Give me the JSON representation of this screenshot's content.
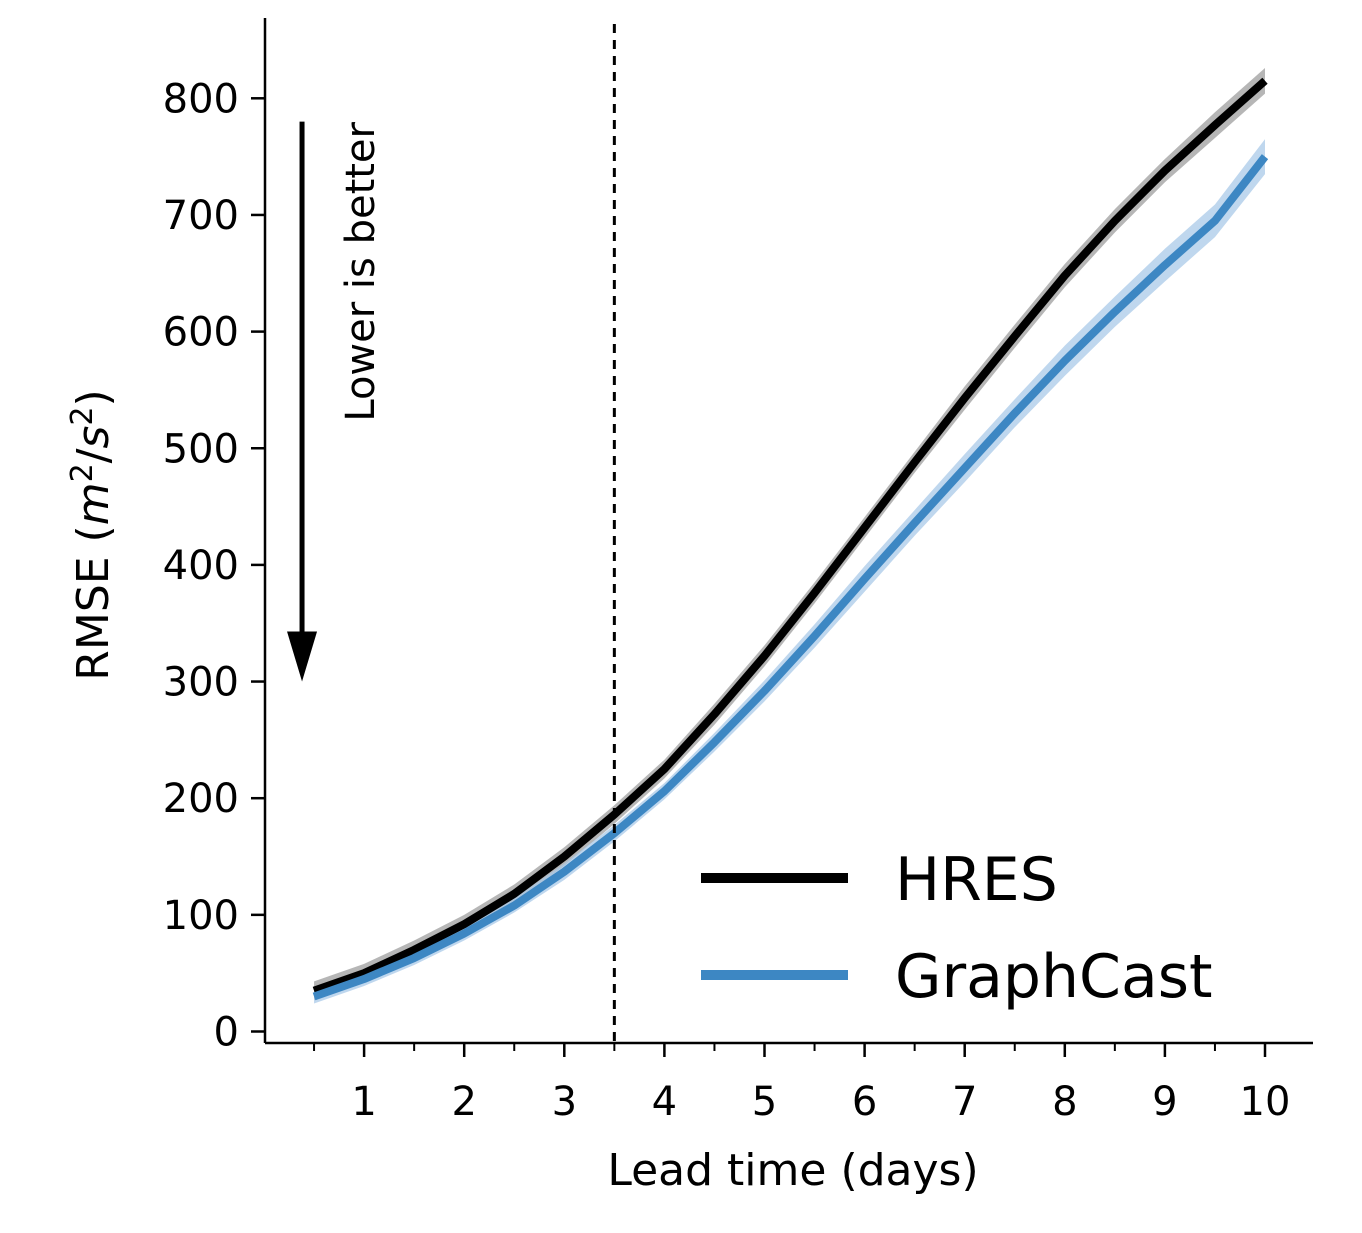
{
  "chart_data": {
    "type": "line",
    "xlabel": "Lead time (days)",
    "ylabel": "RMSE ($m^2/s^2$)",
    "ylabel_parts": {
      "prefix": "RMSE (",
      "m": "m",
      "sup1": "2",
      "slash": "/",
      "s": "s",
      "sup2": "2",
      "suffix": ")"
    },
    "xlim": [
      0,
      10.5
    ],
    "ylim": [
      -10,
      870
    ],
    "xticks": [
      1,
      2,
      3,
      4,
      5,
      6,
      7,
      8,
      9,
      10
    ],
    "xtick_labels": [
      "1",
      "2",
      "3",
      "4",
      "5",
      "6",
      "7",
      "8",
      "9",
      "10"
    ],
    "x_minor_ticks": [
      0.5,
      1.5,
      2.5,
      3.5,
      4.5,
      5.5,
      6.5,
      7.5,
      8.5,
      9.5
    ],
    "yticks": [
      0,
      100,
      200,
      300,
      400,
      500,
      600,
      700,
      800
    ],
    "ytick_labels": [
      "0",
      "100",
      "200",
      "300",
      "400",
      "500",
      "600",
      "700",
      "800"
    ],
    "vline_x": 3.5,
    "annotation": {
      "text": "Lower is better",
      "arrow_from_y": 780,
      "arrow_to_y": 300,
      "arrow_x": 0.38
    },
    "legend_position": "lower-right",
    "grid": false,
    "x": [
      0.5,
      1,
      1.5,
      2,
      2.5,
      3,
      3.5,
      4,
      4.5,
      5,
      5.5,
      6,
      6.5,
      7,
      7.5,
      8,
      8.5,
      9,
      9.5,
      10
    ],
    "series": [
      {
        "name": "HRES",
        "color": "#000000",
        "band_color": "#9e9e9e",
        "values": [
          35,
          50,
          70,
          92,
          118,
          150,
          186,
          225,
          272,
          322,
          376,
          432,
          488,
          543,
          596,
          648,
          695,
          738,
          777,
          815
        ],
        "band": [
          8,
          8,
          8,
          8,
          8,
          8,
          8,
          8,
          9,
          9,
          9,
          9,
          9,
          10,
          10,
          10,
          10,
          10,
          11,
          11
        ]
      },
      {
        "name": "GraphCast",
        "color": "#3d87c3",
        "band_color": "#a9c9e8",
        "values": [
          30,
          45,
          63,
          84,
          108,
          137,
          170,
          206,
          248,
          292,
          339,
          388,
          436,
          483,
          530,
          575,
          617,
          657,
          695,
          750
        ],
        "band": [
          6,
          6,
          6,
          6,
          6,
          7,
          7,
          7,
          8,
          9,
          10,
          11,
          11,
          12,
          12,
          13,
          13,
          14,
          14,
          15
        ]
      }
    ]
  }
}
